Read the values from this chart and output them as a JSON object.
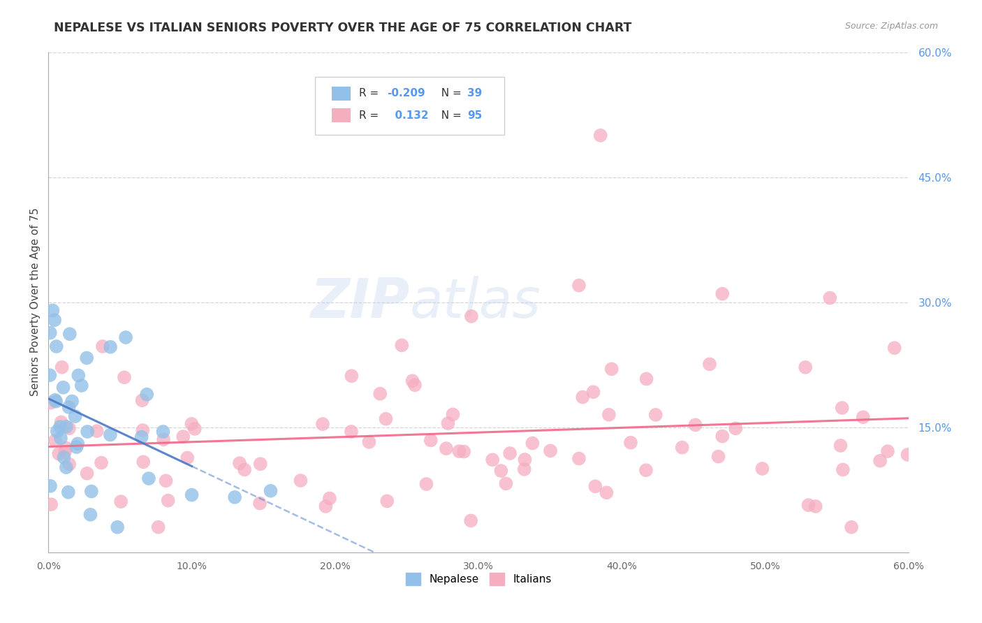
{
  "title": "NEPALESE VS ITALIAN SENIORS POVERTY OVER THE AGE OF 75 CORRELATION CHART",
  "source": "Source: ZipAtlas.com",
  "ylabel": "Seniors Poverty Over the Age of 75",
  "xlim": [
    0.0,
    0.6
  ],
  "ylim": [
    0.0,
    0.6
  ],
  "grid_color": "#cccccc",
  "background_color": "#ffffff",
  "nepalese_color": "#92c0e8",
  "italian_color": "#f5adc0",
  "nepalese_line_color": "#4a78c8",
  "italian_line_color": "#f06888",
  "title_color": "#333333",
  "axis_label_color": "#444444",
  "tick_color": "#666666",
  "right_tick_color": "#5599ee",
  "legend_R_nepalese": "-0.209",
  "legend_N_nepalese": "39",
  "legend_R_italians": "0.132",
  "legend_N_italians": "95",
  "watermark_color": "#c8d8f0",
  "source_color": "#999999"
}
